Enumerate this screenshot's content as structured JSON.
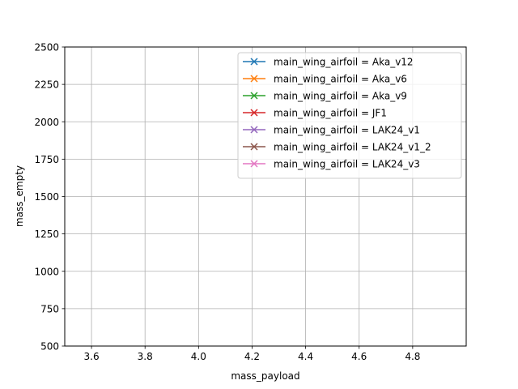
{
  "chart_data": {
    "type": "line",
    "title": "",
    "xlabel": "mass_payload",
    "ylabel": "mass_empty",
    "xlim": [
      3.5,
      5.0
    ],
    "ylim": [
      500,
      2500
    ],
    "xticks": [
      3.6,
      3.8,
      4.0,
      4.2,
      4.4,
      4.6,
      4.8
    ],
    "xtick_labels": [
      "3.6",
      "3.8",
      "4.0",
      "4.2",
      "4.4",
      "4.6",
      "4.8"
    ],
    "yticks": [
      500,
      750,
      1000,
      1250,
      1500,
      1750,
      2000,
      2250,
      2500
    ],
    "ytick_labels": [
      "500",
      "750",
      "1000",
      "1250",
      "1500",
      "1750",
      "2000",
      "2250",
      "2500"
    ],
    "grid": true,
    "legend_position": "top-right",
    "marker": "x",
    "series": [
      {
        "name": "main_wing_airfoil = Aka_v12",
        "color": "#1f77b4",
        "x": [],
        "y": []
      },
      {
        "name": "main_wing_airfoil = Aka_v6",
        "color": "#ff7f0e",
        "x": [],
        "y": []
      },
      {
        "name": "main_wing_airfoil = Aka_v9",
        "color": "#2ca02c",
        "x": [],
        "y": []
      },
      {
        "name": "main_wing_airfoil = JF1",
        "color": "#d62728",
        "x": [],
        "y": []
      },
      {
        "name": "main_wing_airfoil = LAK24_v1",
        "color": "#9467bd",
        "x": [],
        "y": []
      },
      {
        "name": "main_wing_airfoil = LAK24_v1_2",
        "color": "#8c564b",
        "x": [],
        "y": []
      },
      {
        "name": "main_wing_airfoil = LAK24_v3",
        "color": "#e377c2",
        "x": [],
        "y": []
      }
    ]
  }
}
